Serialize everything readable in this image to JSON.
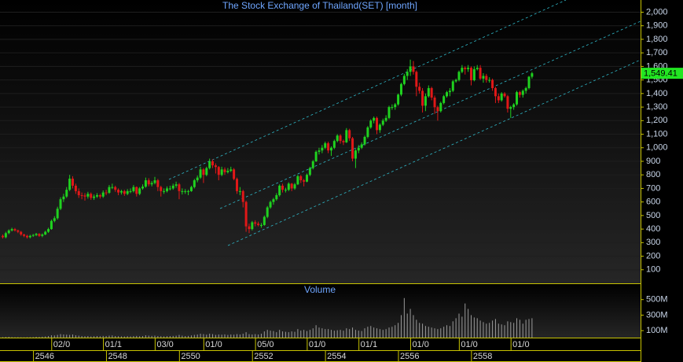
{
  "chart_data": {
    "type": "candlestick",
    "title": "The Stock Exchange of Thailand(SET) [month]",
    "ylim": [
      0,
      2090
    ],
    "yticks": [
      100,
      200,
      300,
      400,
      500,
      600,
      700,
      800,
      900,
      {
        "value": 1000,
        "label": "1,000"
      },
      {
        "value": 1100,
        "label": "1,100"
      },
      {
        "value": 1200,
        "label": "1,200"
      },
      {
        "value": 1300,
        "label": "1,300"
      },
      {
        "value": 1400,
        "label": "1,400"
      },
      {
        "value": 1500,
        "label": "1,500"
      },
      {
        "value": 1600,
        "label": "1,600"
      },
      {
        "value": 1700,
        "label": "1,700"
      },
      {
        "value": 1800,
        "label": "1,800"
      },
      {
        "value": 1900,
        "label": "1,900"
      },
      {
        "value": 2000,
        "label": "2,000"
      }
    ],
    "grid": true,
    "up_color": "#1fd21f",
    "down_color": "#e01818",
    "last_price": {
      "value": 1549.41,
      "label": "1,549.41",
      "color": "#22e622"
    },
    "categories": [
      null,
      null,
      null,
      null,
      null,
      null,
      null,
      null,
      null,
      null,
      null,
      null,
      null,
      null,
      null,
      null,
      null,
      "02/0",
      null,
      null,
      null,
      null,
      null,
      null,
      null,
      null,
      null,
      null,
      null,
      null,
      null,
      null,
      null,
      null,
      "01/1",
      null,
      null,
      null,
      null,
      null,
      null,
      null,
      null,
      null,
      null,
      null,
      null,
      null,
      null,
      null,
      null,
      "03/0",
      null,
      null,
      null,
      null,
      null,
      null,
      null,
      null,
      null,
      null,
      null,
      null,
      null,
      null,
      null,
      "01/0",
      null,
      null,
      null,
      null,
      null,
      null,
      null,
      null,
      null,
      null,
      null,
      null,
      null,
      null,
      null,
      null,
      "05/0",
      null,
      null,
      null,
      null,
      null,
      null,
      null,
      null,
      null,
      null,
      null,
      null,
      null,
      null,
      null,
      null,
      "01/0",
      null,
      null,
      null,
      null,
      null,
      null,
      null,
      null,
      null,
      null,
      null,
      null,
      null,
      null,
      null,
      null,
      "01/1",
      null,
      null,
      null,
      null,
      null,
      null,
      null,
      null,
      null,
      null,
      null,
      null,
      null,
      null,
      null,
      null,
      "01/0",
      null,
      null,
      null,
      null,
      null,
      null,
      null,
      null,
      null,
      null,
      null,
      null,
      null,
      null,
      null,
      "01/0",
      null,
      null,
      null,
      null,
      null,
      null,
      null,
      null,
      null,
      null,
      null,
      null,
      null,
      null,
      null,
      null,
      "01/0",
      null,
      null,
      null,
      null,
      null,
      null
    ],
    "period_categories": [
      null,
      null,
      null,
      null,
      null,
      null,
      null,
      null,
      null,
      null,
      null,
      "2546",
      null,
      null,
      null,
      null,
      null,
      null,
      null,
      null,
      null,
      null,
      null,
      null,
      null,
      null,
      null,
      null,
      null,
      null,
      null,
      null,
      null,
      null,
      null,
      "2548",
      null,
      null,
      null,
      null,
      null,
      null,
      null,
      null,
      null,
      null,
      null,
      null,
      null,
      null,
      null,
      null,
      null,
      null,
      null,
      null,
      null,
      null,
      null,
      "2550",
      null,
      null,
      null,
      null,
      null,
      null,
      null,
      null,
      null,
      null,
      null,
      null,
      null,
      null,
      null,
      null,
      null,
      null,
      null,
      null,
      null,
      null,
      null,
      "2552",
      null,
      null,
      null,
      null,
      null,
      null,
      null,
      null,
      null,
      null,
      null,
      null,
      null,
      null,
      null,
      null,
      null,
      null,
      null,
      null,
      null,
      null,
      null,
      "2554",
      null,
      null,
      null,
      null,
      null,
      null,
      null,
      null,
      null,
      null,
      null,
      null,
      null,
      null,
      null,
      null,
      null,
      null,
      null,
      null,
      null,
      null,
      null,
      "2556",
      null,
      null,
      null,
      null,
      null,
      null,
      null,
      null,
      null,
      null,
      null,
      null,
      null,
      null,
      null,
      null,
      null,
      null,
      null,
      null,
      null,
      null,
      null,
      "2558",
      null,
      null,
      null,
      null,
      null,
      null,
      null,
      null,
      null,
      null,
      null,
      null,
      null,
      null,
      null,
      null,
      null,
      null,
      null
    ],
    "open": [
      350,
      340,
      370,
      390,
      400,
      390,
      380,
      360,
      350,
      340,
      350,
      356,
      365,
      350,
      360,
      380,
      400,
      460,
      480,
      550,
      620,
      640,
      690,
      772,
      720,
      680,
      650,
      648,
      640,
      660,
      630,
      640,
      650,
      640,
      670,
      668,
      710,
      710,
      690,
      670,
      680,
      660,
      680,
      680,
      710,
      660,
      700,
      713,
      760,
      730,
      740,
      760,
      710,
      680,
      680,
      700,
      700,
      720,
      730,
      680,
      680,
      680,
      680,
      710,
      760,
      780,
      840,
      800,
      850,
      900,
      870,
      858,
      800,
      840,
      820,
      830,
      840,
      770,
      680,
      680,
      600,
      420,
      400,
      450,
      440,
      430,
      430,
      490,
      560,
      600,
      620,
      650,
      720,
      690,
      690,
      735,
      700,
      730,
      790,
      760,
      750,
      800,
      850,
      900,
      970,
      980,
      1000,
      1033,
      980,
      1000,
      1050,
      1090,
      1050,
      1040,
      1130,
      1070,
      920,
      980,
      1000,
      1025,
      1080,
      1150,
      1200,
      1220,
      1130,
      1170,
      1200,
      1220,
      1300,
      1300,
      1320,
      1392,
      1470,
      1530,
      1560,
      1600,
      1560,
      1450,
      1420,
      1310,
      1380,
      1440,
      1370,
      1299,
      1270,
      1330,
      1380,
      1410,
      1420,
      1490,
      1500,
      1560,
      1590,
      1580,
      1590,
      1498,
      1580,
      1590,
      1510,
      1530,
      1500,
      1500,
      1440,
      1380,
      1350,
      1400,
      1380,
      1288,
      1300,
      1320,
      1410,
      1390,
      1420,
      1440,
      1524
    ],
    "high": [
      360,
      380,
      398,
      410,
      408,
      396,
      386,
      366,
      358,
      358,
      364,
      372,
      370,
      368,
      388,
      410,
      470,
      495,
      565,
      635,
      660,
      710,
      800,
      790,
      735,
      700,
      670,
      665,
      675,
      670,
      655,
      665,
      660,
      685,
      690,
      725,
      735,
      720,
      700,
      690,
      690,
      695,
      700,
      725,
      715,
      710,
      730,
      780,
      775,
      755,
      785,
      770,
      720,
      700,
      715,
      720,
      735,
      750,
      740,
      700,
      695,
      690,
      720,
      770,
      795,
      860,
      850,
      860,
      920,
      915,
      885,
      865,
      860,
      855,
      850,
      860,
      850,
      780,
      710,
      690,
      610,
      440,
      460,
      465,
      455,
      445,
      500,
      570,
      610,
      630,
      665,
      730,
      735,
      705,
      745,
      740,
      740,
      800,
      800,
      770,
      810,
      860,
      910,
      980,
      1000,
      1020,
      1045,
      1045,
      1010,
      1060,
      1100,
      1100,
      1060,
      1145,
      1140,
      1080,
      990,
      1020,
      1040,
      1090,
      1160,
      1210,
      1230,
      1230,
      1180,
      1215,
      1240,
      1310,
      1320,
      1330,
      1400,
      1480,
      1545,
      1580,
      1650,
      1640,
      1570,
      1480,
      1440,
      1400,
      1460,
      1450,
      1385,
      1310,
      1340,
      1390,
      1420,
      1440,
      1500,
      1510,
      1570,
      1610,
      1600,
      1610,
      1600,
      1600,
      1610,
      1610,
      1550,
      1545,
      1520,
      1510,
      1450,
      1400,
      1410,
      1410,
      1390,
      1310,
      1330,
      1420,
      1420,
      1430,
      1450,
      1530,
      1560
    ],
    "low": [
      330,
      332,
      362,
      382,
      382,
      370,
      350,
      340,
      330,
      332,
      342,
      348,
      342,
      340,
      355,
      372,
      395,
      450,
      470,
      540,
      600,
      630,
      680,
      700,
      660,
      630,
      620,
      610,
      625,
      615,
      615,
      630,
      625,
      630,
      650,
      660,
      695,
      675,
      650,
      655,
      645,
      650,
      665,
      670,
      640,
      650,
      690,
      705,
      715,
      715,
      730,
      680,
      640,
      660,
      670,
      685,
      690,
      705,
      620,
      655,
      660,
      650,
      675,
      700,
      745,
      770,
      740,
      790,
      840,
      850,
      810,
      760,
      790,
      800,
      810,
      820,
      760,
      660,
      650,
      560,
      380,
      370,
      390,
      420,
      420,
      410,
      425,
      480,
      550,
      580,
      610,
      640,
      670,
      670,
      680,
      680,
      690,
      725,
      740,
      715,
      745,
      790,
      840,
      895,
      950,
      960,
      990,
      960,
      940,
      990,
      1040,
      1030,
      1020,
      1035,
      1050,
      900,
      850,
      960,
      990,
      1015,
      1070,
      1140,
      1180,
      1100,
      1110,
      1160,
      1190,
      1210,
      1280,
      1280,
      1310,
      1380,
      1460,
      1500,
      1530,
      1540,
      1380,
      1400,
      1260,
      1270,
      1370,
      1350,
      1250,
      1200,
      1260,
      1320,
      1370,
      1380,
      1410,
      1480,
      1490,
      1550,
      1540,
      1560,
      1460,
      1490,
      1570,
      1500,
      1480,
      1480,
      1480,
      1420,
      1330,
      1330,
      1340,
      1370,
      1260,
      1220,
      1280,
      1310,
      1370,
      1370,
      1400,
      1430,
      1510
    ],
    "close": [
      340,
      370,
      390,
      400,
      390,
      380,
      360,
      350,
      340,
      350,
      356,
      365,
      350,
      360,
      380,
      400,
      460,
      480,
      550,
      620,
      640,
      690,
      772,
      720,
      680,
      650,
      648,
      640,
      660,
      630,
      640,
      650,
      640,
      670,
      668,
      710,
      710,
      690,
      670,
      680,
      660,
      680,
      680,
      710,
      660,
      700,
      713,
      760,
      730,
      740,
      760,
      710,
      680,
      680,
      700,
      700,
      720,
      730,
      680,
      680,
      680,
      680,
      710,
      760,
      780,
      840,
      800,
      850,
      900,
      870,
      858,
      800,
      840,
      820,
      830,
      840,
      770,
      680,
      680,
      600,
      420,
      400,
      450,
      440,
      430,
      430,
      490,
      560,
      600,
      620,
      650,
      720,
      690,
      690,
      735,
      700,
      730,
      790,
      760,
      750,
      800,
      850,
      900,
      970,
      980,
      1000,
      1033,
      980,
      1000,
      1050,
      1090,
      1050,
      1040,
      1130,
      1070,
      920,
      980,
      1000,
      1025,
      1080,
      1150,
      1200,
      1220,
      1130,
      1170,
      1200,
      1220,
      1300,
      1300,
      1320,
      1392,
      1470,
      1530,
      1560,
      1600,
      1560,
      1450,
      1420,
      1310,
      1380,
      1440,
      1370,
      1299,
      1270,
      1330,
      1380,
      1410,
      1420,
      1490,
      1500,
      1560,
      1590,
      1580,
      1590,
      1498,
      1580,
      1590,
      1510,
      1530,
      1500,
      1500,
      1440,
      1380,
      1350,
      1400,
      1380,
      1288,
      1300,
      1320,
      1410,
      1390,
      1420,
      1440,
      1524,
      1549.41
    ],
    "volume": {
      "name": "Volume",
      "color": "#9a9a9a",
      "ylim": [
        0,
        700
      ],
      "yticks": [
        {
          "value": 100,
          "label": "100M"
        },
        {
          "value": 300,
          "label": "300M"
        },
        {
          "value": 500,
          "label": "500M"
        }
      ],
      "values": [
        15,
        18,
        20,
        16,
        14,
        15,
        14,
        13,
        14,
        15,
        16,
        20,
        18,
        22,
        25,
        30,
        40,
        38,
        45,
        55,
        50,
        48,
        45,
        50,
        40,
        35,
        30,
        28,
        30,
        25,
        28,
        30,
        28,
        32,
        30,
        35,
        38,
        30,
        28,
        26,
        25,
        28,
        26,
        30,
        32,
        28,
        30,
        40,
        35,
        32,
        36,
        30,
        28,
        26,
        28,
        30,
        32,
        35,
        45,
        35,
        30,
        32,
        38,
        45,
        50,
        60,
        55,
        48,
        60,
        55,
        45,
        50,
        48,
        52,
        45,
        50,
        48,
        55,
        50,
        60,
        80,
        55,
        50,
        55,
        50,
        60,
        90,
        110,
        100,
        95,
        80,
        110,
        90,
        85,
        80,
        90,
        85,
        120,
        100,
        110,
        95,
        110,
        130,
        170,
        140,
        130,
        120,
        120,
        110,
        100,
        105,
        110,
        100,
        130,
        120,
        140,
        110,
        100,
        95,
        130,
        150,
        160,
        140,
        130,
        120,
        110,
        120,
        140,
        150,
        170,
        200,
        300,
        520,
        320,
        380,
        300,
        240,
        200,
        190,
        160,
        150,
        140,
        130,
        120,
        130,
        150,
        170,
        160,
        220,
        260,
        320,
        280,
        450,
        380,
        300,
        270,
        260,
        230,
        210,
        190,
        200,
        230,
        250,
        190,
        180,
        170,
        220,
        210,
        200,
        260,
        240,
        190,
        240,
        250,
        260
      ]
    }
  }
}
